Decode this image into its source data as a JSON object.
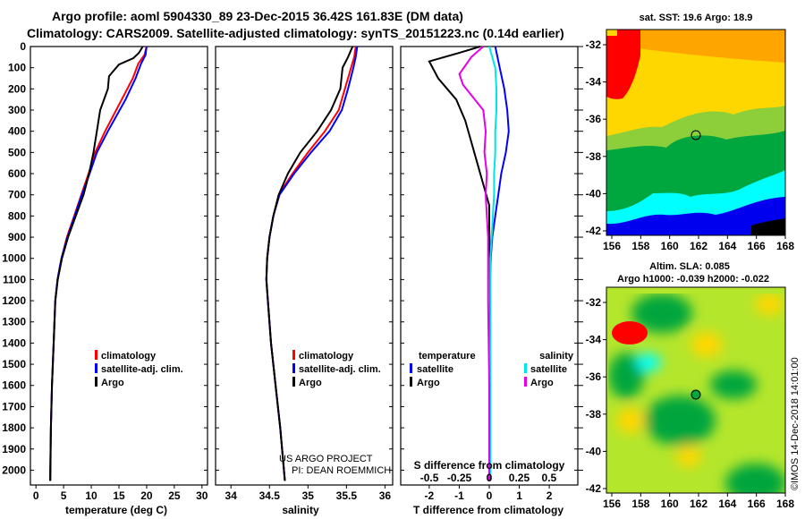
{
  "header": {
    "line1": "Argo profile: aoml 5904330_89 23-Dec-2015 36.42S 161.83E (DM data)",
    "line2": "Climatology: CARS2009. Satellite-adjusted climatology: synTS_20151223.nc (0.14d earlier)"
  },
  "depth_ticks": [
    "0",
    "100",
    "200",
    "300",
    "400",
    "500",
    "600",
    "700",
    "800",
    "900",
    "1000",
    "1100",
    "1200",
    "1300",
    "1400",
    "1500",
    "1600",
    "1700",
    "1800",
    "1900",
    "2000"
  ],
  "panel_temp": {
    "xlabel": "temperature (deg C)",
    "ticks": [
      "0",
      "5",
      "10",
      "15",
      "20",
      "25",
      "30"
    ],
    "legend": [
      "climatology",
      "satellite-adj. clim.",
      "Argo"
    ]
  },
  "panel_sal": {
    "xlabel": "salinity",
    "ticks": [
      "34",
      "34.5",
      "35",
      "35.5",
      "36"
    ],
    "legend": [
      "climatology",
      "satellite-adj. clim.",
      "Argo"
    ],
    "credit1": "US ARGO PROJECT",
    "credit2": "PI: DEAN ROEMMICH"
  },
  "panel_diff": {
    "xlabel": "T difference from climatology",
    "xlabel_top": "S difference from climatology",
    "ticks": [
      "-2",
      "-1",
      "0",
      "1",
      "2"
    ],
    "s_ticks": [
      "-0.5",
      "-0.25",
      "0",
      "0.25",
      "0.5"
    ],
    "legend_t_title": "temperature",
    "legend_t": [
      "satellite",
      "Argo"
    ],
    "legend_s_title": "salinity",
    "legend_s": [
      "satellite",
      "Argo"
    ]
  },
  "map_sst": {
    "title": "sat. SST: 19.6 Argo: 18.9",
    "lat_ticks": [
      "-32",
      "-34",
      "-36",
      "-38",
      "-40",
      "-42"
    ],
    "lon_ticks": [
      "156",
      "158",
      "160",
      "162",
      "164",
      "166",
      "168"
    ]
  },
  "map_sla": {
    "title1": "Altim. SLA: 0.085",
    "title2": "Argo h1000: -0.039 h2000: -0.022",
    "lat_ticks": [
      "-32",
      "-34",
      "-36",
      "-38",
      "-40",
      "-42"
    ],
    "lon_ticks": [
      "156",
      "158",
      "160",
      "162",
      "164",
      "166",
      "168"
    ]
  },
  "watermark": "©IMOS 14-Dec-2018 14:01:00",
  "colors": {
    "climatology": "#ff0000",
    "satellite": "#0000ff",
    "argo": "#000000",
    "salinity_satellite": "#00e5e5",
    "salinity_argo": "#e600e6"
  },
  "chart_data": [
    {
      "type": "line",
      "xlabel": "temperature (deg C)",
      "ylabel": "",
      "xlim": [
        -1,
        31
      ],
      "ylim": [
        2070,
        0
      ],
      "series": [
        {
          "name": "climatology",
          "color": "#ff0000",
          "x": [
            20,
            19.6,
            18.5,
            17.5,
            15.5,
            12.5,
            10.7,
            9.5,
            8.2,
            6.9,
            5.6,
            4.6,
            3.9,
            3.5,
            3.2,
            2.9,
            2.7,
            2.55
          ],
          "y": [
            0,
            40,
            80,
            150,
            250,
            400,
            500,
            600,
            700,
            800,
            900,
            1000,
            1100,
            1200,
            1400,
            1600,
            1800,
            2050
          ]
        },
        {
          "name": "satellite-adj. clim.",
          "color": "#0000ff",
          "x": [
            20,
            19.8,
            19,
            18,
            16.2,
            13,
            11,
            9.7,
            8.3,
            7,
            5.7,
            4.6,
            3.9,
            3.5,
            3.2,
            2.9,
            2.7,
            2.55
          ],
          "y": [
            0,
            40,
            80,
            150,
            250,
            400,
            500,
            600,
            700,
            800,
            900,
            1000,
            1100,
            1200,
            1400,
            1600,
            1800,
            2050
          ]
        },
        {
          "name": "Argo",
          "color": "#000000",
          "x": [
            19.3,
            18.6,
            17.6,
            15,
            13.2,
            13,
            11.6,
            11,
            10.7,
            10.4,
            9.6,
            8.6,
            7.2,
            5.8,
            4.7,
            3.95,
            3.5,
            3.2,
            2.9,
            2.7,
            2.6
          ],
          "y": [
            0,
            30,
            55,
            85,
            140,
            200,
            300,
            400,
            450,
            500,
            600,
            700,
            800,
            900,
            1000,
            1100,
            1200,
            1400,
            1600,
            1800,
            2050
          ]
        }
      ]
    },
    {
      "type": "line",
      "xlabel": "salinity",
      "ylabel": "",
      "xlim": [
        33.8,
        36.1
      ],
      "ylim": [
        2070,
        0
      ],
      "series": [
        {
          "name": "climatology",
          "color": "#ff0000",
          "x": [
            35.62,
            35.6,
            35.56,
            35.48,
            35.4,
            35.22,
            35.0,
            34.8,
            34.62,
            34.55,
            34.5,
            34.47,
            34.46,
            34.48,
            34.52,
            34.58,
            34.64,
            34.7
          ],
          "y": [
            0,
            50,
            100,
            200,
            300,
            400,
            500,
            600,
            700,
            800,
            900,
            1000,
            1100,
            1200,
            1400,
            1600,
            1800,
            2050
          ]
        },
        {
          "name": "satellite-adj. clim.",
          "color": "#0000ff",
          "x": [
            35.64,
            35.62,
            35.59,
            35.52,
            35.44,
            35.28,
            35.04,
            34.82,
            34.63,
            34.55,
            34.5,
            34.47,
            34.46,
            34.48,
            34.52,
            34.58,
            34.64,
            34.7
          ],
          "y": [
            0,
            50,
            100,
            200,
            300,
            400,
            500,
            600,
            700,
            800,
            900,
            1000,
            1100,
            1200,
            1400,
            1600,
            1800,
            2050
          ]
        },
        {
          "name": "Argo",
          "color": "#000000",
          "x": [
            35.58,
            35.52,
            35.45,
            35.42,
            35.3,
            35.12,
            34.9,
            34.74,
            34.62,
            34.55,
            34.5,
            34.47,
            34.46,
            34.48,
            34.52,
            34.58,
            34.64,
            34.7
          ],
          "y": [
            0,
            50,
            100,
            200,
            300,
            400,
            500,
            600,
            700,
            800,
            900,
            1000,
            1100,
            1200,
            1400,
            1600,
            1800,
            2050
          ]
        }
      ]
    },
    {
      "type": "line",
      "xlabel": "T difference from climatology",
      "ylabel": "",
      "xlim": [
        -2.95,
        2.95
      ],
      "ylim": [
        2070,
        0
      ],
      "series": [
        {
          "name": "satellite",
          "color": "#0000ff",
          "x": [
            0.2,
            0.35,
            0.5,
            0.6,
            0.65,
            0.55,
            0.4,
            0.3,
            0.2,
            0.1,
            0.05,
            0.03,
            0.02,
            0.02,
            0.02
          ],
          "y": [
            0,
            100,
            200,
            300,
            400,
            500,
            600,
            700,
            800,
            900,
            1000,
            1100,
            1400,
            1800,
            2050
          ]
        },
        {
          "name": "Argo",
          "color": "#000000",
          "x": [
            -0.3,
            -1.0,
            -2.0,
            -1.7,
            -1.1,
            -0.8,
            -0.6,
            -0.4,
            -0.2,
            0.0,
            0.0,
            0.02,
            0.03,
            0.02,
            0.02
          ],
          "y": [
            0,
            30,
            70,
            150,
            250,
            350,
            450,
            550,
            650,
            750,
            850,
            1000,
            1200,
            1600,
            2050
          ]
        }
      ]
    },
    {
      "type": "line",
      "xlabel": "S difference from climatology",
      "ylabel": "",
      "xlim": [
        -0.74,
        0.74
      ],
      "ylim": [
        2070,
        0
      ],
      "series": [
        {
          "name": "satellite",
          "color": "#00e5e5",
          "x": [
            0.0,
            0.05,
            0.06,
            0.06,
            0.05,
            0.05,
            0.04,
            0.04,
            0.03,
            0.02,
            0.01,
            0.01,
            0.01,
            0.01,
            0.01
          ],
          "y": [
            0,
            100,
            200,
            300,
            400,
            500,
            600,
            700,
            800,
            900,
            1000,
            1100,
            1400,
            1800,
            2050
          ]
        },
        {
          "name": "Argo",
          "color": "#e600e6",
          "x": [
            -0.05,
            -0.15,
            -0.25,
            -0.22,
            -0.05,
            -0.03,
            -0.04,
            -0.02,
            -0.03,
            -0.02,
            -0.01,
            -0.01,
            -0.01,
            0.0,
            0.0
          ],
          "y": [
            0,
            50,
            130,
            180,
            300,
            400,
            500,
            600,
            700,
            800,
            900,
            1000,
            1200,
            1600,
            2050
          ]
        }
      ]
    }
  ]
}
